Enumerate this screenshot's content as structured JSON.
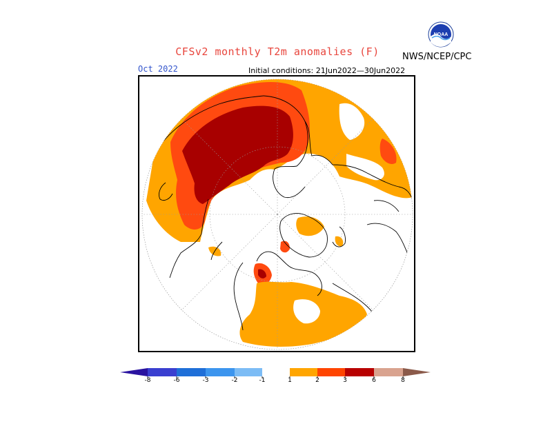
{
  "map": {
    "title": "CFSv2 monthly T2m anomalies (F)",
    "organization": "NWS/NCEP/CPC",
    "logo_text": "NOAA",
    "month": "Oct 2022",
    "initial_conditions": "Initial conditions: 21Jun2022—30Jun2022",
    "projection": "north-polar-stereographic",
    "variable": "2m temperature anomaly",
    "units": "F"
  },
  "colorbar": {
    "tick_labels": [
      "-8",
      "-6",
      "-3",
      "-2",
      "-1",
      "1",
      "2",
      "3",
      "6",
      "8"
    ],
    "colors": {
      "below_-8": "#2a13a0",
      "-8_to_-6": "#3a3fd0",
      "-6_to_-3": "#1f6fd8",
      "-3_to_-2": "#3c95ee",
      "-2_to_-1": "#7cbcf5",
      "-1_to_1": "#ffffff",
      "1_to_2": "#ffa500",
      "2_to_3": "#ff4500",
      "3_to_6": "#b80000",
      "6_to_8": "#d9a38f",
      "above_8": "#8b5a4a"
    }
  },
  "colors": {
    "anomaly_1_2": "#ffa500",
    "anomaly_2_3": "#ff4a10",
    "anomaly_3_6": "#a80000",
    "coastline": "#000000",
    "title": "#e8453c",
    "month": "#3355cc"
  }
}
